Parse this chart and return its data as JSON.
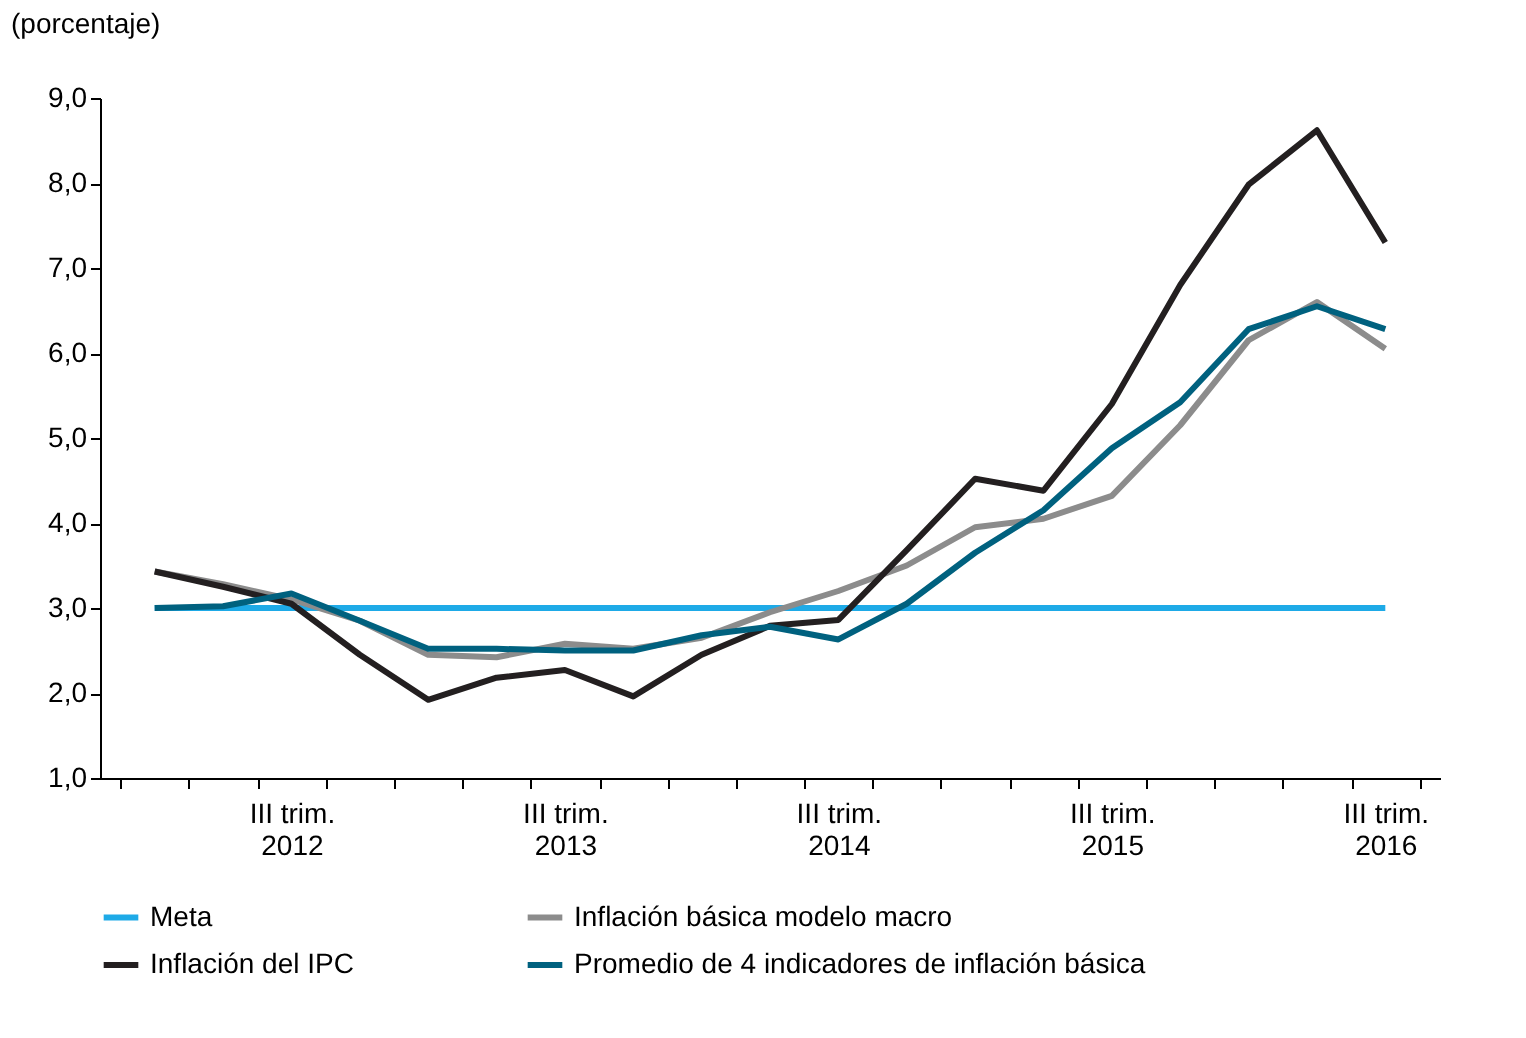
{
  "chart_data": {
    "type": "line",
    "ylabel": "(porcentaje)",
    "categories": [
      null,
      null,
      "III trim. 2012",
      null,
      null,
      null,
      "III trim. 2013",
      null,
      null,
      null,
      "III trim. 2014",
      null,
      null,
      null,
      "III trim. 2015",
      null,
      null,
      null,
      "III trim. 2016"
    ],
    "series": [
      {
        "name": "Meta",
        "color": "#1eaae7",
        "values": [
          3.0,
          3.0,
          3.0,
          3.0,
          3.0,
          3.0,
          3.0,
          3.0,
          3.0,
          3.0,
          3.0,
          3.0,
          3.0,
          3.0,
          3.0,
          3.0,
          3.0,
          3.0,
          3.0
        ]
      },
      {
        "name": "Inflación básica modelo macro",
        "color": "#8c8c8c",
        "values": [
          3.43,
          3.28,
          3.1,
          2.85,
          2.45,
          2.42,
          2.58,
          2.52,
          2.65,
          2.95,
          3.2,
          3.5,
          3.95,
          4.05,
          4.32,
          5.15,
          6.15,
          6.6,
          6.05
        ]
      },
      {
        "name": "Inflación del IPC",
        "color": "#231f20",
        "values": [
          3.43,
          3.25,
          3.05,
          2.45,
          1.92,
          2.18,
          2.27,
          1.96,
          2.45,
          2.79,
          2.86,
          3.68,
          4.52,
          4.38,
          5.4,
          6.8,
          7.98,
          8.62,
          7.3
        ]
      },
      {
        "name": "Promedio de 4 indicadores de inflación básica",
        "color": "#00617f",
        "values": [
          3.0,
          3.02,
          3.17,
          2.85,
          2.52,
          2.52,
          2.5,
          2.5,
          2.68,
          2.78,
          2.63,
          3.05,
          3.65,
          4.15,
          4.88,
          5.42,
          6.28,
          6.55,
          6.28
        ]
      }
    ],
    "ylim": [
      1.0,
      9.0
    ],
    "yticks": [
      {
        "value": 1,
        "label": "1,0"
      },
      {
        "value": 2,
        "label": "2,0"
      },
      {
        "value": 3,
        "label": "3,0"
      },
      {
        "value": 4,
        "label": "4,0"
      },
      {
        "value": 5,
        "label": "5,0"
      },
      {
        "value": 6,
        "label": "6,0"
      },
      {
        "value": 7,
        "label": "7,0"
      },
      {
        "value": 8,
        "label": "8,0"
      },
      {
        "value": 9,
        "label": "9,0"
      }
    ],
    "grid": false,
    "legend": "bottom",
    "marker": "none",
    "line_style": "solid"
  }
}
